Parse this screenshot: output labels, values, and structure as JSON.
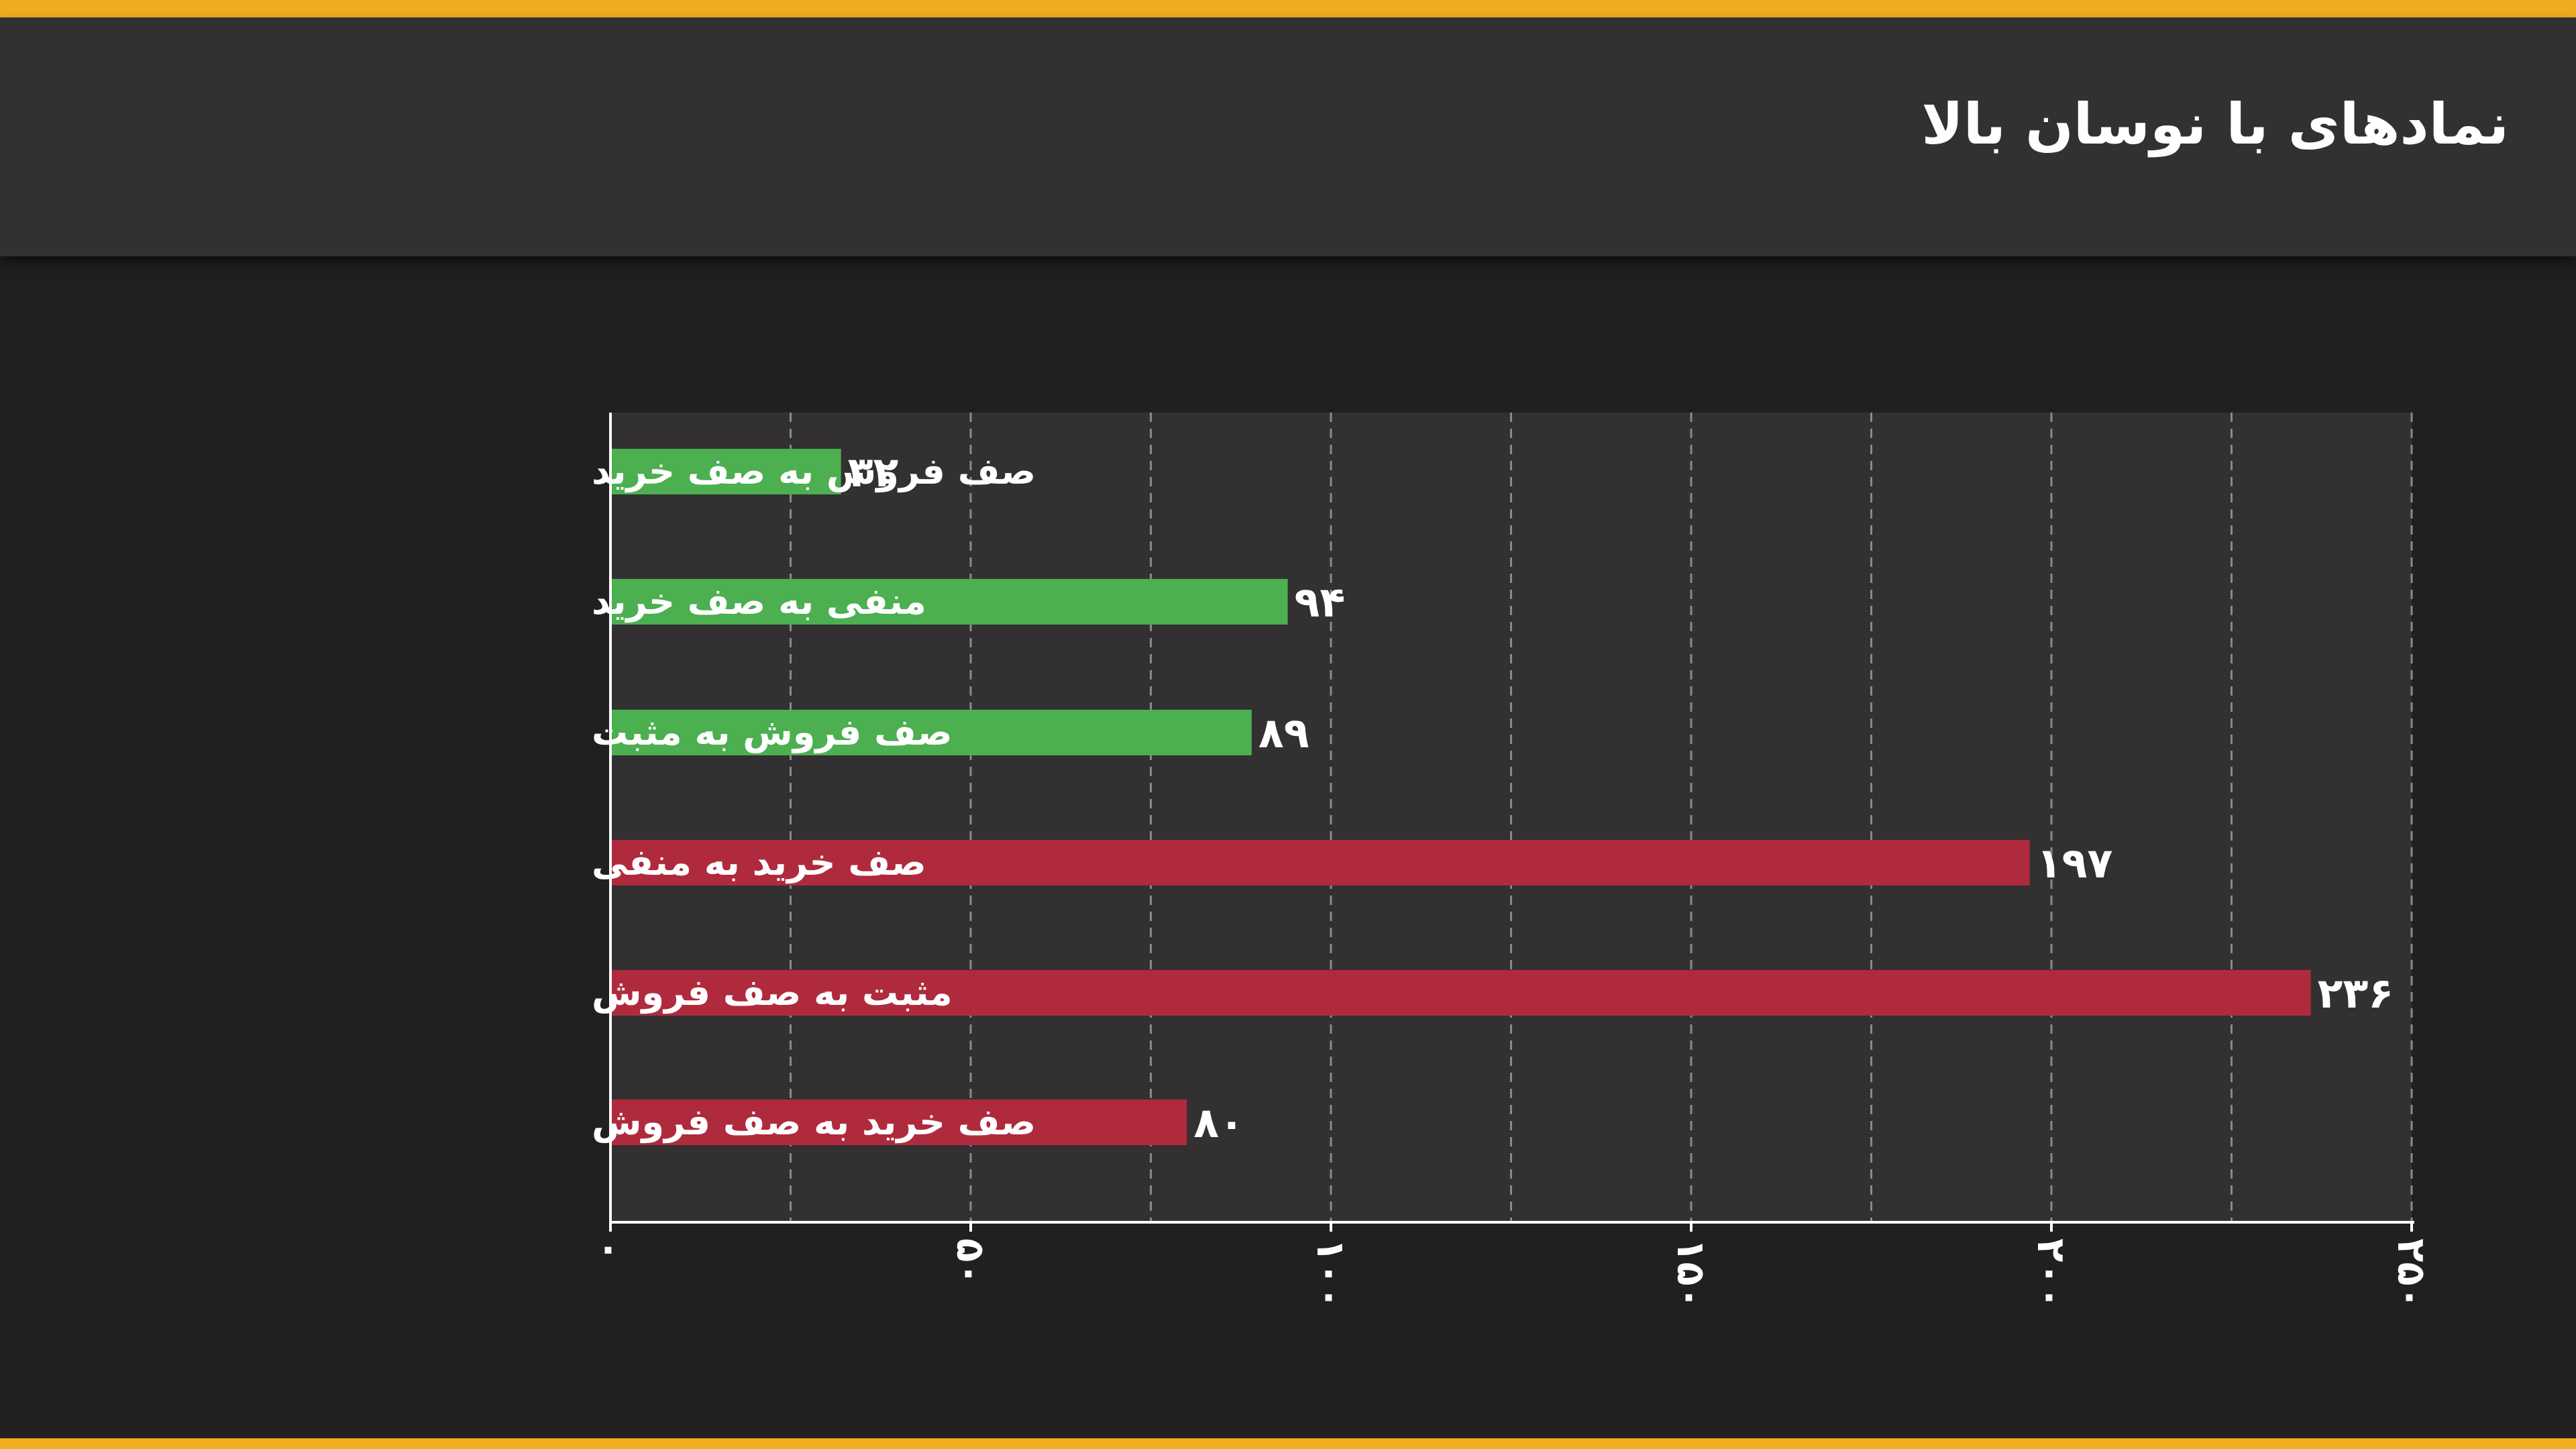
{
  "header": {
    "title": "نمادهای با نوسان بالا"
  },
  "chart_data": {
    "type": "bar",
    "orientation": "horizontal",
    "title": "نمادهای با نوسان بالا",
    "categories": [
      "صف فروش به صف خرید",
      "منفی به صف خرید",
      "صف فروش به مثبت",
      "صف خرید به منفی",
      "مثبت به صف فروش",
      "صف خرید به صف فروش"
    ],
    "values": [
      32,
      94,
      89,
      197,
      236,
      80
    ],
    "value_labels": [
      "۳۲",
      "۹۴",
      "۸۹",
      "۱۹۷",
      "۲۳۶",
      "۸۰"
    ],
    "bar_colors": [
      "#4caf50",
      "#4caf50",
      "#4caf50",
      "#b02a3d",
      "#b02a3d",
      "#b02a3d"
    ],
    "xlim": [
      0,
      250
    ],
    "ticks": [
      0,
      50,
      100,
      150,
      200,
      250
    ],
    "tick_labels": [
      "۰",
      "۵۰",
      "۱۰۰",
      "۱۵۰",
      "۲۰۰",
      "۲۵۰"
    ],
    "xlabel": "",
    "ylabel": "",
    "grid": true,
    "colors": {
      "accent": "#f0ad20",
      "positive": "#4caf50",
      "negative": "#b02a3d",
      "plot_background": "#323031",
      "page_background": "#221f21",
      "gridline": "#8a8a8a"
    }
  }
}
